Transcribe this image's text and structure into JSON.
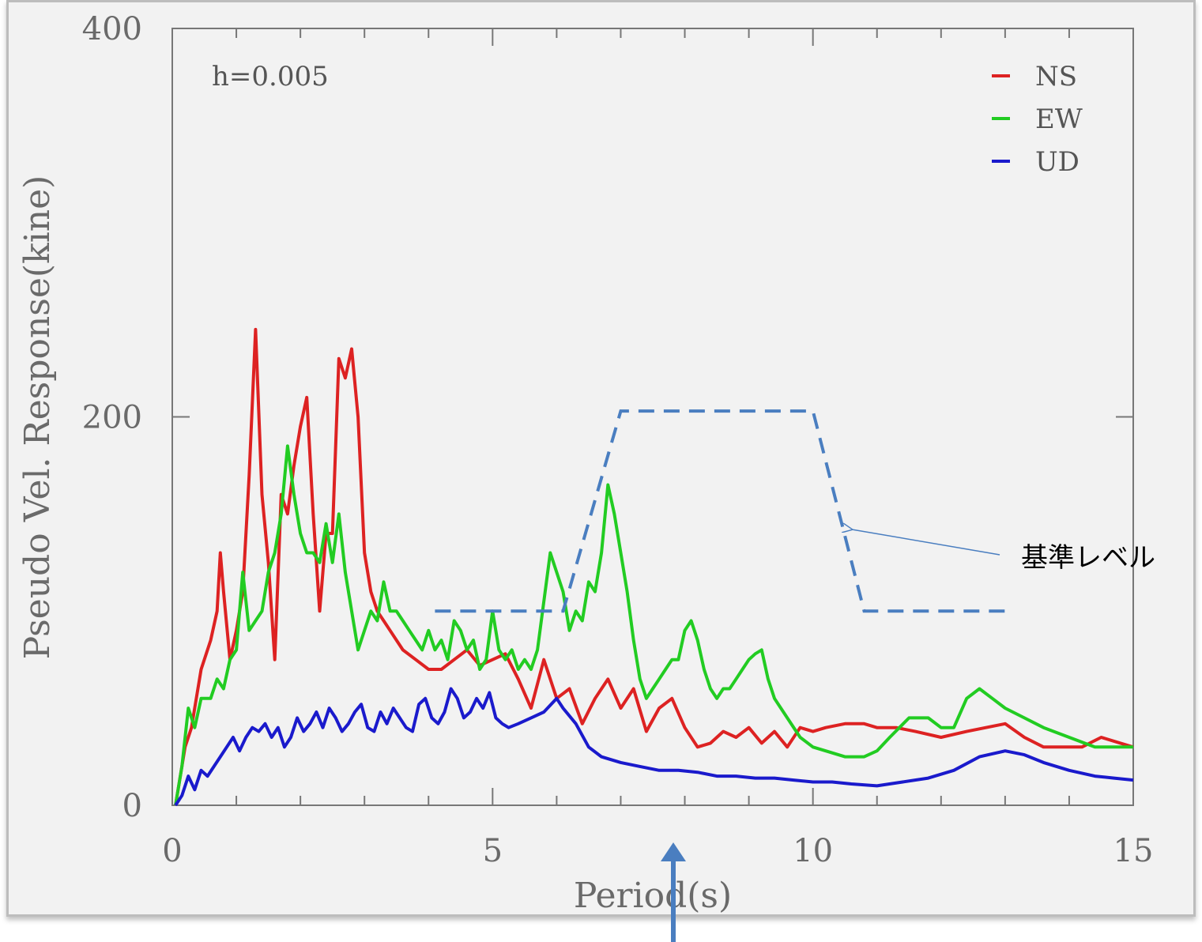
{
  "chart_data": {
    "type": "line",
    "title": "",
    "xlabel": "Period(s)",
    "ylabel": "Pseudo Vel. Response(kine)",
    "xlim": [
      0,
      15
    ],
    "ylim": [
      0,
      400
    ],
    "x_ticks": [
      0,
      5,
      10,
      15
    ],
    "y_ticks": [
      0,
      200,
      400
    ],
    "x_tick_labels": [
      "0",
      "5",
      "10",
      "15"
    ],
    "y_tick_labels": [
      "0",
      "200",
      "400"
    ],
    "grid": false,
    "legend_position": "top-right",
    "annotation": "h=0.005",
    "series": [
      {
        "name": "NS",
        "color": "#dd2222",
        "x": [
          0.05,
          0.2,
          0.3,
          0.45,
          0.6,
          0.7,
          0.75,
          0.8,
          0.9,
          1.0,
          1.1,
          1.2,
          1.3,
          1.4,
          1.5,
          1.6,
          1.7,
          1.8,
          1.9,
          2.0,
          2.1,
          2.2,
          2.3,
          2.4,
          2.5,
          2.6,
          2.7,
          2.8,
          2.9,
          3.0,
          3.1,
          3.2,
          3.3,
          3.4,
          3.5,
          3.6,
          3.8,
          4.0,
          4.2,
          4.4,
          4.6,
          4.8,
          5.0,
          5.2,
          5.4,
          5.6,
          5.8,
          6.0,
          6.2,
          6.4,
          6.6,
          6.8,
          7.0,
          7.2,
          7.4,
          7.6,
          7.8,
          8.0,
          8.2,
          8.4,
          8.6,
          8.8,
          9.0,
          9.2,
          9.4,
          9.6,
          9.8,
          10.0,
          10.2,
          10.5,
          10.8,
          11.0,
          11.3,
          11.6,
          12.0,
          12.4,
          12.7,
          13.0,
          13.3,
          13.6,
          13.9,
          14.2,
          14.5,
          14.8,
          15.0
        ],
        "values": [
          0,
          30,
          40,
          70,
          85,
          100,
          130,
          110,
          75,
          90,
          110,
          170,
          245,
          160,
          125,
          75,
          160,
          150,
          175,
          195,
          210,
          150,
          100,
          140,
          140,
          230,
          220,
          235,
          200,
          130,
          110,
          100,
          95,
          90,
          85,
          80,
          75,
          70,
          70,
          75,
          80,
          72,
          75,
          78,
          65,
          50,
          75,
          55,
          60,
          42,
          55,
          65,
          50,
          60,
          38,
          50,
          55,
          40,
          30,
          32,
          38,
          35,
          40,
          32,
          38,
          30,
          40,
          38,
          40,
          42,
          42,
          40,
          40,
          38,
          35,
          38,
          40,
          42,
          35,
          30,
          30,
          30,
          35,
          32,
          30
        ],
        "label": "NS"
      },
      {
        "name": "EW",
        "color": "#22cc22",
        "x": [
          0.05,
          0.15,
          0.25,
          0.35,
          0.45,
          0.6,
          0.7,
          0.8,
          0.9,
          1.0,
          1.1,
          1.2,
          1.3,
          1.4,
          1.5,
          1.6,
          1.7,
          1.8,
          1.9,
          2.0,
          2.1,
          2.2,
          2.3,
          2.4,
          2.5,
          2.6,
          2.7,
          2.8,
          2.9,
          3.0,
          3.1,
          3.2,
          3.3,
          3.4,
          3.5,
          3.6,
          3.7,
          3.8,
          3.9,
          4.0,
          4.1,
          4.2,
          4.3,
          4.4,
          4.5,
          4.6,
          4.7,
          4.8,
          4.9,
          5.0,
          5.1,
          5.2,
          5.3,
          5.4,
          5.5,
          5.6,
          5.7,
          5.8,
          5.9,
          6.0,
          6.1,
          6.2,
          6.3,
          6.4,
          6.5,
          6.6,
          6.7,
          6.8,
          6.9,
          7.0,
          7.1,
          7.2,
          7.3,
          7.4,
          7.5,
          7.6,
          7.7,
          7.8,
          7.9,
          8.0,
          8.1,
          8.2,
          8.3,
          8.4,
          8.5,
          8.6,
          8.7,
          8.8,
          8.9,
          9.0,
          9.1,
          9.2,
          9.3,
          9.4,
          9.6,
          9.8,
          10.0,
          10.2,
          10.5,
          10.8,
          11.0,
          11.2,
          11.5,
          11.8,
          12.0,
          12.2,
          12.4,
          12.6,
          12.8,
          13.0,
          13.3,
          13.6,
          14.0,
          14.4,
          14.7,
          15.0
        ],
        "values": [
          0,
          20,
          50,
          40,
          55,
          55,
          65,
          60,
          75,
          80,
          120,
          90,
          95,
          100,
          120,
          130,
          150,
          185,
          160,
          140,
          130,
          130,
          125,
          145,
          125,
          150,
          120,
          100,
          80,
          90,
          100,
          95,
          115,
          100,
          100,
          95,
          90,
          85,
          80,
          90,
          80,
          85,
          75,
          95,
          90,
          80,
          85,
          70,
          75,
          100,
          80,
          75,
          80,
          70,
          75,
          70,
          80,
          105,
          130,
          120,
          110,
          90,
          100,
          95,
          115,
          110,
          130,
          165,
          150,
          130,
          110,
          85,
          65,
          55,
          60,
          65,
          70,
          75,
          75,
          90,
          95,
          85,
          70,
          60,
          55,
          60,
          60,
          65,
          70,
          75,
          78,
          80,
          65,
          55,
          45,
          35,
          30,
          28,
          25,
          25,
          28,
          35,
          45,
          45,
          40,
          40,
          55,
          60,
          55,
          50,
          45,
          40,
          35,
          30,
          30,
          30
        ]
      },
      {
        "name": "UD",
        "color": "#1a1acc",
        "x": [
          0.05,
          0.15,
          0.25,
          0.35,
          0.45,
          0.55,
          0.65,
          0.75,
          0.85,
          0.95,
          1.05,
          1.15,
          1.25,
          1.35,
          1.45,
          1.55,
          1.65,
          1.75,
          1.85,
          1.95,
          2.05,
          2.15,
          2.25,
          2.35,
          2.45,
          2.55,
          2.65,
          2.75,
          2.85,
          2.95,
          3.05,
          3.15,
          3.25,
          3.35,
          3.45,
          3.55,
          3.65,
          3.75,
          3.85,
          3.95,
          4.05,
          4.15,
          4.25,
          4.35,
          4.45,
          4.55,
          4.65,
          4.75,
          4.85,
          4.95,
          5.05,
          5.15,
          5.25,
          5.4,
          5.6,
          5.8,
          6.0,
          6.1,
          6.3,
          6.5,
          6.7,
          7.0,
          7.3,
          7.6,
          7.9,
          8.2,
          8.5,
          8.8,
          9.1,
          9.4,
          9.7,
          10.0,
          10.3,
          10.6,
          11.0,
          11.4,
          11.8,
          12.2,
          12.6,
          13.0,
          13.3,
          13.6,
          14.0,
          14.4,
          14.7,
          15.0
        ],
        "values": [
          0,
          5,
          15,
          8,
          18,
          15,
          20,
          25,
          30,
          35,
          28,
          35,
          40,
          38,
          42,
          35,
          40,
          30,
          35,
          45,
          38,
          42,
          48,
          40,
          50,
          45,
          38,
          42,
          48,
          52,
          40,
          38,
          48,
          42,
          50,
          45,
          40,
          38,
          52,
          55,
          45,
          42,
          48,
          60,
          55,
          45,
          48,
          55,
          50,
          58,
          45,
          42,
          40,
          42,
          45,
          48,
          55,
          50,
          42,
          30,
          25,
          22,
          20,
          18,
          18,
          17,
          15,
          15,
          14,
          14,
          13,
          12,
          12,
          11,
          10,
          12,
          14,
          18,
          25,
          28,
          26,
          22,
          18,
          15,
          14,
          13
        ]
      }
    ],
    "reference_level": {
      "label": "基準レベル",
      "color": "#4a7ec0",
      "x": [
        4.1,
        6.1,
        7.0,
        10.0,
        10.8,
        13.0
      ],
      "values": [
        100,
        100,
        203,
        203,
        100,
        100
      ]
    }
  }
}
